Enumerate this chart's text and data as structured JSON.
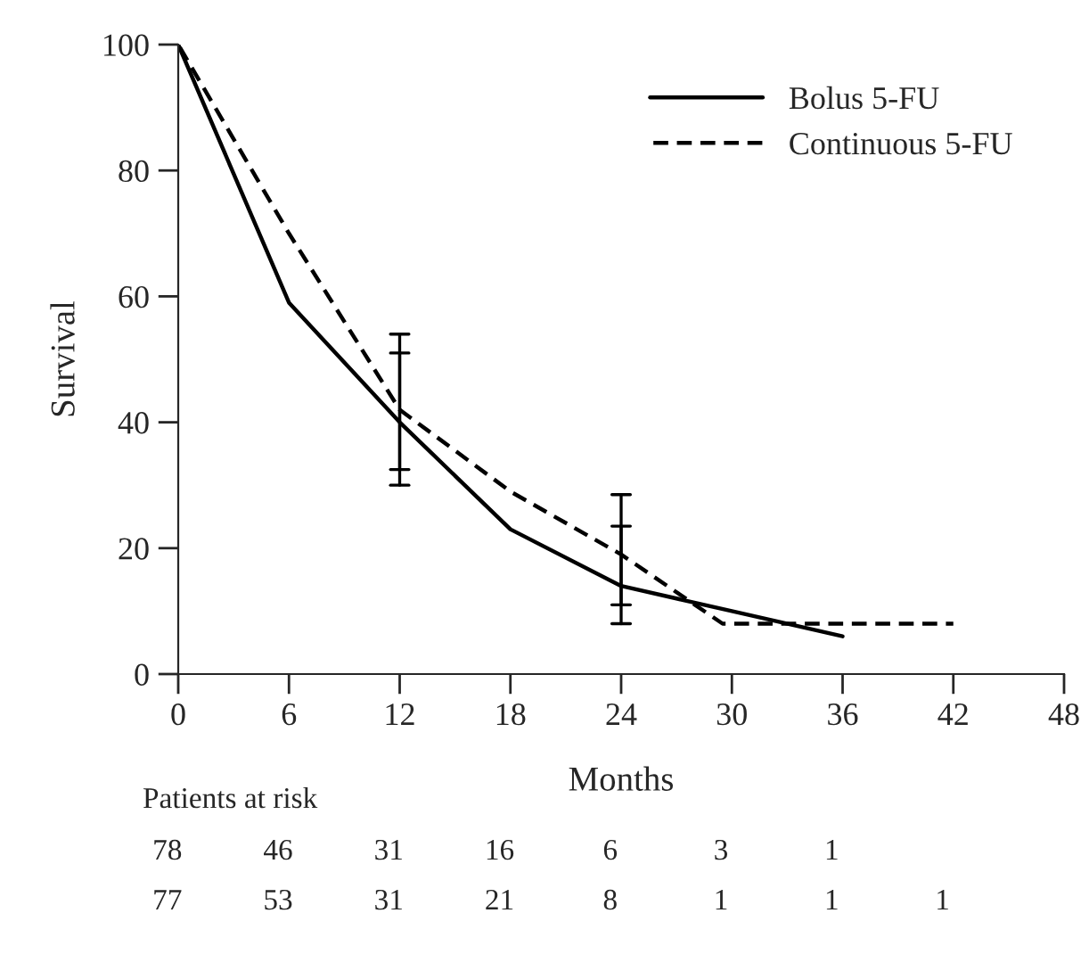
{
  "chart_data": {
    "type": "line",
    "xlabel": "Months",
    "ylabel": "Survival",
    "xlim": [
      0,
      48
    ],
    "xticks": [
      0,
      6,
      12,
      18,
      24,
      30,
      36,
      42,
      48
    ],
    "ylim": [
      0,
      100
    ],
    "yticks": [
      0,
      20,
      40,
      60,
      80,
      100
    ],
    "series": [
      {
        "name": "Bolus 5-FU",
        "color": "#000000",
        "line_style": "solid",
        "x": [
          0,
          6,
          12,
          18,
          24,
          30,
          36
        ],
        "values": [
          100,
          59,
          40,
          23,
          14,
          10,
          6
        ],
        "errors": [
          null,
          null,
          [
            30,
            51
          ],
          null,
          [
            8,
            23.5
          ],
          null,
          null
        ]
      },
      {
        "name": "Continuous 5-FU",
        "color": "#000000",
        "line_style": "dashed",
        "x": [
          0,
          6,
          12,
          18,
          24,
          28,
          29.5,
          42
        ],
        "values": [
          100,
          70,
          42,
          29,
          19,
          11,
          8,
          8
        ],
        "errors": [
          null,
          null,
          [
            32.5,
            54
          ],
          null,
          [
            11,
            28.5
          ],
          null,
          null,
          null
        ]
      }
    ],
    "legend": "top right",
    "grid": false,
    "marker": "none",
    "annotations": [
      "Patients at risk",
      "78 46 31 16 6 3 1",
      "77 53 31 21 8 1 1 1"
    ]
  }
}
